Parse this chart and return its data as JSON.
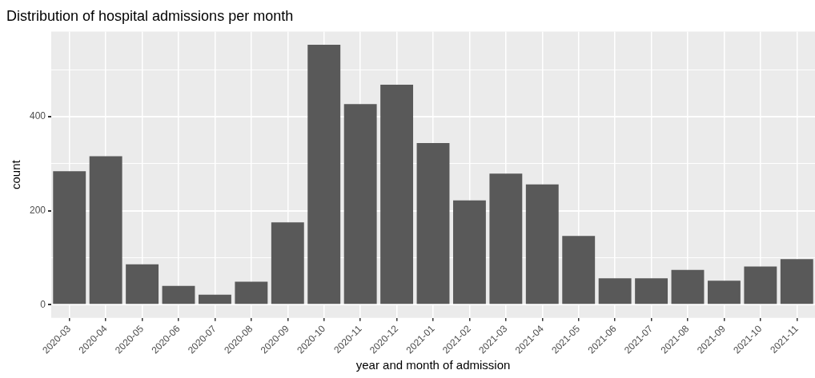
{
  "chart_data": {
    "type": "bar",
    "title": "Distribution of hospital admissions per month",
    "xlabel": "year and month of admission",
    "ylabel": "count",
    "categories": [
      "2020-03",
      "2020-04",
      "2020-05",
      "2020-06",
      "2020-07",
      "2020-08",
      "2020-09",
      "2020-10",
      "2020-11",
      "2020-12",
      "2021-01",
      "2021-02",
      "2021-03",
      "2021-04",
      "2021-05",
      "2021-06",
      "2021-07",
      "2021-08",
      "2021-09",
      "2021-10",
      "2021-11"
    ],
    "values": [
      284,
      316,
      86,
      40,
      21,
      49,
      175,
      553,
      427,
      468,
      344,
      222,
      279,
      256,
      146,
      56,
      56,
      74,
      51,
      81,
      97
    ],
    "color": "#595959",
    "ylim": [
      -28,
      581
    ],
    "yticks": [
      0,
      {
        "value": 100,
        "label": null
      },
      200,
      {
        "value": 300,
        "label": null
      },
      400,
      {
        "value": 500,
        "label": null
      }
    ],
    "grid": true
  }
}
